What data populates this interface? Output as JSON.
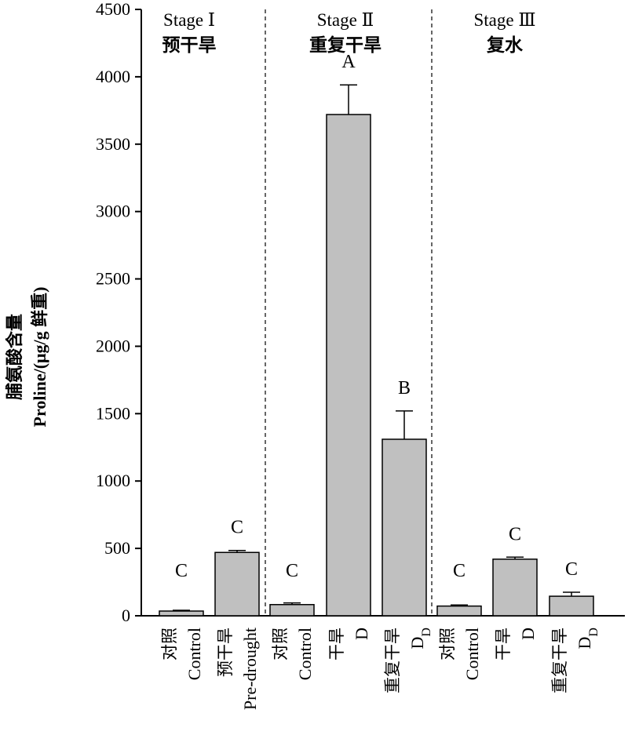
{
  "chart_data": {
    "type": "bar",
    "ylabel_cn": "脯氨酸含量",
    "ylabel_en": "Proline/(μg/g 鲜重)",
    "ylim": [
      0,
      4500
    ],
    "yticks": [
      0,
      500,
      1000,
      1500,
      2000,
      2500,
      3000,
      3500,
      4000,
      4500
    ],
    "bar_color": "#c0c0c0",
    "stages": [
      {
        "title": "Stage Ⅰ",
        "subtitle": "预干旱"
      },
      {
        "title": "Stage Ⅱ",
        "subtitle": "重复干旱"
      },
      {
        "title": "Stage Ⅲ",
        "subtitle": "复水"
      }
    ],
    "bars": [
      {
        "stage": 0,
        "cn": "对照",
        "en": "Control",
        "value": 35,
        "error": 6,
        "sig": "C"
      },
      {
        "stage": 0,
        "cn": "预干旱",
        "en": "Pre-drought",
        "value": 470,
        "error": 15,
        "sig": "C"
      },
      {
        "stage": 1,
        "cn": "对照",
        "en": "Control",
        "value": 83,
        "error": 12,
        "sig": "C"
      },
      {
        "stage": 1,
        "cn": "干旱",
        "en": "D",
        "value": 3720,
        "error": 220,
        "sig": "A"
      },
      {
        "stage": 1,
        "cn": "重复干旱",
        "en": "D",
        "en_sub": "D",
        "value": 1310,
        "error": 210,
        "sig": "B"
      },
      {
        "stage": 2,
        "cn": "对照",
        "en": "Control",
        "value": 72,
        "error": 8,
        "sig": "C"
      },
      {
        "stage": 2,
        "cn": "干旱",
        "en": "D",
        "value": 420,
        "error": 15,
        "sig": "C"
      },
      {
        "stage": 2,
        "cn": "重复干旱",
        "en": "D",
        "en_sub": "D",
        "value": 145,
        "error": 30,
        "sig": "C"
      }
    ]
  }
}
